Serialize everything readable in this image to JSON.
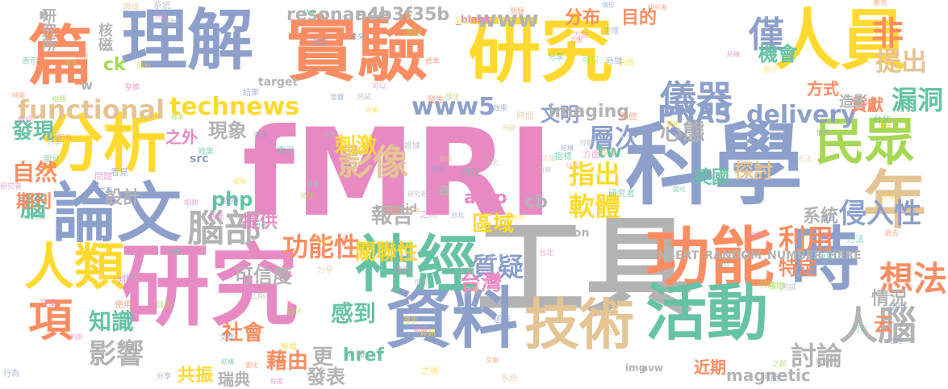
{
  "palette": {
    "pink": "#e78ac3",
    "blue": "#8da0cb",
    "orange": "#fc8d62",
    "yellow": "#ffd92f",
    "green": "#a6d854",
    "teal": "#66c2a5",
    "tan": "#e5c494",
    "gray": "#b3b3b3"
  },
  "words": [
    {
      "text": "fMRI",
      "color": "pink"
    },
    {
      "text": "工具",
      "color": "gray"
    },
    {
      "text": "研究",
      "color": "pink"
    },
    {
      "text": "科學",
      "color": "blue"
    },
    {
      "text": "研究",
      "color": "yellow"
    },
    {
      "text": "實驗",
      "color": "orange"
    },
    {
      "text": "理解",
      "color": "blue"
    },
    {
      "text": "人員",
      "color": "yellow"
    },
    {
      "text": "篇",
      "color": "orange"
    },
    {
      "text": "分析",
      "color": "yellow"
    },
    {
      "text": "論文",
      "color": "blue"
    },
    {
      "text": "資料",
      "color": "blue"
    },
    {
      "text": "神經",
      "color": "teal"
    },
    {
      "text": "功能",
      "color": "orange"
    },
    {
      "text": "時",
      "color": "blue"
    },
    {
      "text": "活動",
      "color": "teal"
    },
    {
      "text": "技術",
      "color": "tan"
    },
    {
      "text": "年",
      "color": "tan"
    },
    {
      "text": "人類",
      "color": "yellow"
    },
    {
      "text": "民眾",
      "color": "green"
    },
    {
      "text": "腦部",
      "color": "gray"
    },
    {
      "text": "儀器",
      "color": "blue"
    },
    {
      "text": "人腦",
      "color": "gray"
    },
    {
      "text": "項",
      "color": "orange"
    },
    {
      "text": "影像",
      "color": "tan"
    },
    {
      "text": "functional",
      "color": "tan"
    },
    {
      "text": "technews",
      "color": "yellow"
    },
    {
      "text": "PNAS",
      "color": "blue"
    },
    {
      "text": "delivery",
      "color": "blue"
    },
    {
      "text": "www5",
      "color": "blue"
    },
    {
      "text": "www",
      "color": "gray"
    },
    {
      "text": "侵入性",
      "color": "blue"
    },
    {
      "text": "想法",
      "color": "orange"
    },
    {
      "text": "功能性",
      "color": "orange"
    },
    {
      "text": "質疑",
      "color": "blue"
    },
    {
      "text": "軟體",
      "color": "yellow"
    },
    {
      "text": "指出",
      "color": "yellow"
    },
    {
      "text": "利用",
      "color": "orange"
    },
    {
      "text": "影響",
      "color": "gray"
    },
    {
      "text": "層次",
      "color": "blue"
    },
    {
      "text": "心態",
      "color": "gray"
    },
    {
      "text": "提出",
      "color": "tan"
    },
    {
      "text": "漏洞",
      "color": "teal"
    },
    {
      "text": "討論",
      "color": "gray"
    },
    {
      "text": "僅",
      "color": "blue"
    },
    {
      "text": "非",
      "color": "orange"
    },
    {
      "text": "自然",
      "color": "orange"
    },
    {
      "text": "發現",
      "color": "teal"
    },
    {
      "text": "刺激",
      "color": "yellow"
    },
    {
      "text": "現象",
      "color": "gray"
    },
    {
      "text": "文明",
      "color": "blue"
    },
    {
      "text": "分布",
      "color": "orange"
    },
    {
      "text": "目的",
      "color": "orange"
    },
    {
      "text": "機會",
      "color": "teal"
    },
    {
      "text": "特定",
      "color": "orange"
    },
    {
      "text": "情況",
      "color": "gray"
    },
    {
      "text": "知識",
      "color": "teal"
    },
    {
      "text": "社會",
      "color": "orange"
    },
    {
      "text": "感到",
      "color": "teal"
    },
    {
      "text": "藉由",
      "color": "orange"
    },
    {
      "text": "發表",
      "color": "gray"
    },
    {
      "text": "台灣",
      "color": "pink"
    },
    {
      "text": "區域",
      "color": "yellow"
    },
    {
      "text": "關聯性",
      "color": "yellow"
    },
    {
      "text": "報告",
      "color": "gray"
    },
    {
      "text": "探討",
      "color": "tan"
    },
    {
      "text": "英國",
      "color": "teal"
    },
    {
      "text": "系統",
      "color": "gray"
    },
    {
      "text": "可信度",
      "color": "gray"
    },
    {
      "text": "共振",
      "color": "yellow"
    },
    {
      "text": "瑞典",
      "color": "gray"
    },
    {
      "text": "近期",
      "color": "orange"
    },
    {
      "text": "magnetic",
      "color": "gray"
    },
    {
      "text": "resonance",
      "color": "gray"
    },
    {
      "text": "a4b3f35b",
      "color": "gray"
    },
    {
      "text": "imaging",
      "color": "gray"
    },
    {
      "text": "研究所",
      "color": "gray"
    },
    {
      "text": "核磁",
      "color": "gray"
    },
    {
      "text": "腦",
      "color": "teal"
    },
    {
      "text": "期刊",
      "color": "orange"
    },
    {
      "text": "設計",
      "color": "gray"
    },
    {
      "text": "提供",
      "color": "pink"
    },
    {
      "text": "php",
      "color": "teal"
    },
    {
      "text": "tw",
      "color": "teal"
    },
    {
      "text": "貢獻",
      "color": "orange"
    },
    {
      "text": "方式",
      "color": "orange"
    },
    {
      "text": "造影",
      "color": "gray"
    },
    {
      "text": "更",
      "color": "gray"
    },
    {
      "text": "href",
      "color": "teal"
    },
    {
      "text": "云",
      "color": "orange"
    },
    {
      "text": "之外",
      "color": "pink"
    },
    {
      "text": "amp",
      "color": "pink"
    },
    {
      "text": "cb",
      "color": "gray"
    },
    {
      "text": "a",
      "color": "gray"
    },
    {
      "text": "ck",
      "color": "green"
    },
    {
      "text": "n",
      "color": "gray"
    },
    {
      "text": "localization",
      "color": "gray"
    },
    {
      "text": "zoneid",
      "color": "gray"
    },
    {
      "text": "INSERT_RANDOM_NUMBER_HERE",
      "color": "gray"
    },
    {
      "text": "target",
      "color": "gray"
    },
    {
      "text": "_blank",
      "color": "pink"
    },
    {
      "text": "src",
      "color": "blue"
    },
    {
      "text": "img",
      "color": "gray"
    },
    {
      "text": "avw",
      "color": "gray"
    },
    {
      "text": "w",
      "color": "gray"
    },
    {
      "text": "xx",
      "color": "gray"
    }
  ]
}
